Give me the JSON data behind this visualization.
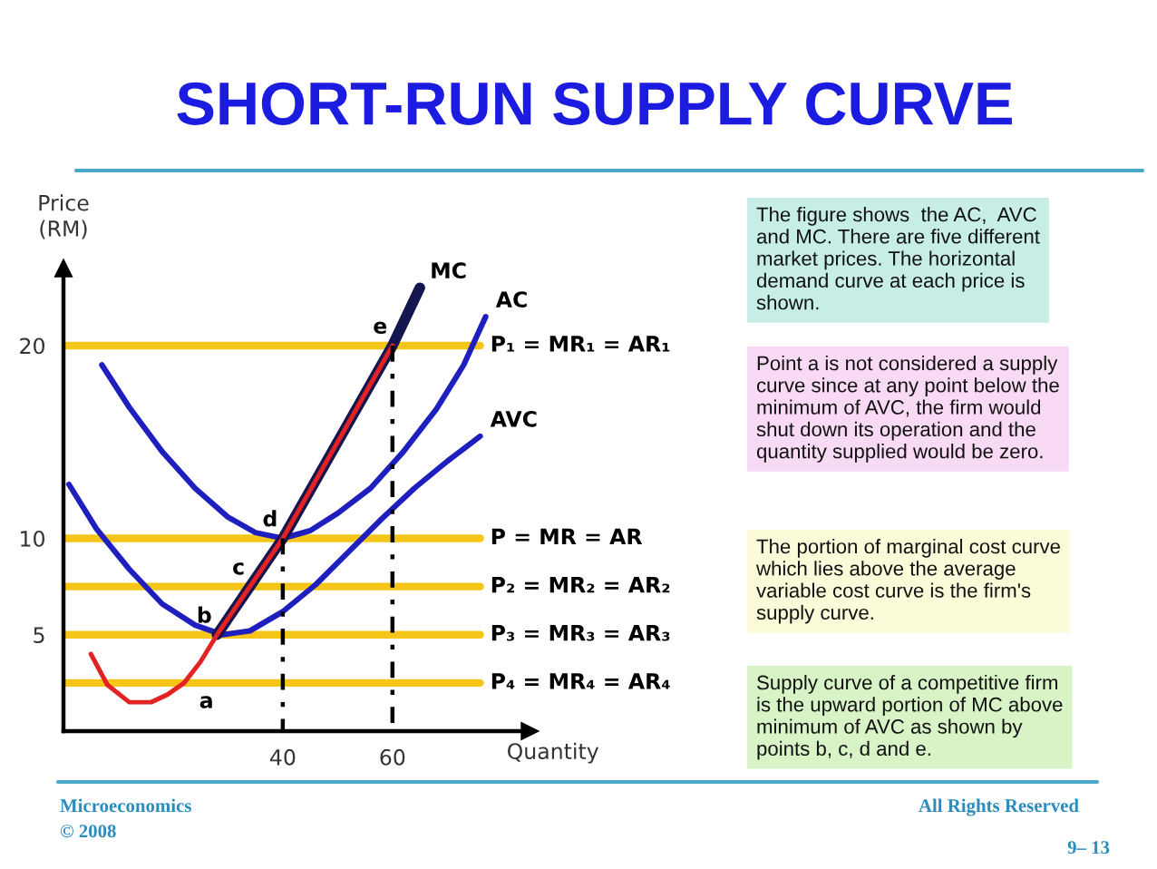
{
  "chart_data": {
    "type": "line",
    "title": "SHORT-RUN SUPPLY CURVE",
    "xlabel": "Quantity",
    "ylabel": "Price\n(RM)",
    "xlim": [
      0,
      85
    ],
    "ylim": [
      0,
      24
    ],
    "xticks": [
      40,
      60
    ],
    "yticks": [
      5,
      10,
      20
    ],
    "grid": false,
    "series": [
      {
        "name": "P₁ = MR₁ = AR₁",
        "color": "#f5c518",
        "x": [
          0,
          76
        ],
        "values": [
          20,
          20
        ]
      },
      {
        "name": "P = MR = AR",
        "color": "#f5c518",
        "x": [
          0,
          76
        ],
        "values": [
          10,
          10
        ]
      },
      {
        "name": "P₂ = MR₂ = AR₂",
        "color": "#f5c518",
        "x": [
          0,
          76
        ],
        "values": [
          7.5,
          7.5
        ]
      },
      {
        "name": "P₃ = MR₃ = AR₃",
        "color": "#f5c518",
        "x": [
          0,
          76
        ],
        "values": [
          5,
          5
        ]
      },
      {
        "name": "P₄ = MR₄ = AR₄",
        "color": "#f5c518",
        "x": [
          0,
          76
        ],
        "values": [
          2.5,
          2.5
        ]
      },
      {
        "name": "AVC",
        "color": "#1f1fbf",
        "x": [
          1,
          6,
          12,
          18,
          24,
          29,
          34,
          40,
          46,
          52,
          58,
          64,
          70,
          76
        ],
        "values": [
          12.8,
          10.5,
          8.4,
          6.6,
          5.5,
          5.0,
          5.2,
          6.2,
          7.6,
          9.3,
          11.0,
          12.6,
          14.0,
          15.3
        ]
      },
      {
        "name": "AC",
        "color": "#1f1fbf",
        "x": [
          7,
          12,
          18,
          24,
          30,
          35,
          40,
          45,
          50,
          56,
          62,
          68,
          73,
          77
        ],
        "values": [
          19.0,
          16.8,
          14.5,
          12.6,
          11.1,
          10.3,
          10.0,
          10.4,
          11.3,
          12.6,
          14.5,
          16.7,
          19.0,
          21.5
        ]
      },
      {
        "name": "MC",
        "color": "#15154f",
        "x": [
          28,
          34,
          40,
          60,
          65
        ],
        "values": [
          5,
          7.5,
          10,
          20,
          23
        ]
      },
      {
        "color": "#e32222",
        "x": [
          5,
          8,
          12,
          16,
          19,
          22,
          25,
          28,
          34,
          40,
          60
        ],
        "values": [
          4.0,
          2.4,
          1.5,
          1.5,
          1.9,
          2.5,
          3.6,
          5.0,
          7.5,
          10.0,
          20.0
        ]
      },
      {
        "color": "#000000",
        "x": [
          40,
          40
        ],
        "values": [
          10,
          0
        ],
        "line_style": "dashed"
      },
      {
        "color": "#000000",
        "x": [
          60,
          60
        ],
        "values": [
          20,
          0
        ],
        "line_style": "dashed"
      }
    ],
    "annotations": [
      "The figure shows  the AC,  AVC\nand MC. There are five different\nmarket prices. The horizontal\ndemand curve at each price is\nshown.",
      "Point a is not considered a supply\ncurve since at any point below the\nminimum of AVC, the firm would\nshut down its operation and the\nquantity supplied would be zero.",
      "The portion of marginal cost curve\nwhich lies above the average\nvariable cost curve is the firm's\nsupply curve.",
      "Supply curve of a competitive firm\nis the upward portion of MC above\nminimum of AVC as shown by\npoints b, c, d and e.",
      "Microeconomics",
      "© 2008",
      "All Rights Reserved",
      "9– 13",
      {
        "text": "a",
        "x": 22,
        "y": 2.5
      },
      {
        "text": "b",
        "x": 28,
        "y": 5
      },
      {
        "text": "c",
        "x": 34,
        "y": 7.5
      },
      {
        "text": "d",
        "x": 40,
        "y": 10
      },
      {
        "text": "e",
        "x": 60,
        "y": 20
      }
    ]
  }
}
